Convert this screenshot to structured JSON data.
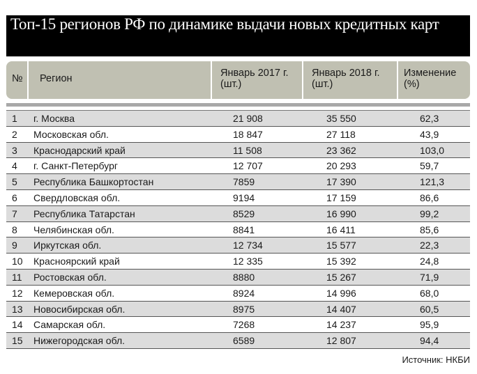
{
  "title": "Топ-15 регионов РФ по динамике выдачи новых кредитных карт",
  "columns": [
    "№",
    "Регион",
    "Январь 2017 г. (шт.)",
    "Январь 2018 г. (шт.)",
    "Изменение (%)"
  ],
  "rows": [
    [
      "1",
      "г. Москва",
      "21 908",
      "35 550",
      "62,3"
    ],
    [
      "2",
      "Московская обл.",
      "18 847",
      "27 118",
      "43,9"
    ],
    [
      "3",
      "Краснодарский край",
      "11 508",
      "23 362",
      "103,0"
    ],
    [
      "4",
      "г. Санкт-Петербург",
      "12 707",
      "20 293",
      "59,7"
    ],
    [
      "5",
      "Республика Башкортостан",
      "7859",
      "17 390",
      "121,3"
    ],
    [
      "6",
      "Свердловская обл.",
      "9194",
      "17 159",
      "86,6"
    ],
    [
      "7",
      "Республика Татарстан",
      "8529",
      "16 990",
      "99,2"
    ],
    [
      "8",
      "Челябинская обл.",
      "8841",
      "16 411",
      "85,6"
    ],
    [
      "9",
      "Иркутская обл.",
      "12 734",
      "15 577",
      "22,3"
    ],
    [
      "10",
      "Красноярский край",
      "12 335",
      "15 392",
      "24,8"
    ],
    [
      "11",
      "Ростовская обл.",
      "8880",
      "15 267",
      "71,9"
    ],
    [
      "12",
      "Кемеровская обл.",
      "8924",
      "14 996",
      "68,0"
    ],
    [
      "13",
      "Новосибирская обл.",
      "8975",
      "14 407",
      "60,5"
    ],
    [
      "14",
      "Самарская обл.",
      "7268",
      "14 237",
      "95,9"
    ],
    [
      "15",
      "Нижегородская обл.",
      "6589",
      "12 807",
      "94,4"
    ]
  ],
  "source": "Источник: НКБИ",
  "colors": {
    "title_bg": "#000000",
    "header_bg": "#c0c0b2",
    "stripe": "#dcdcdc"
  }
}
